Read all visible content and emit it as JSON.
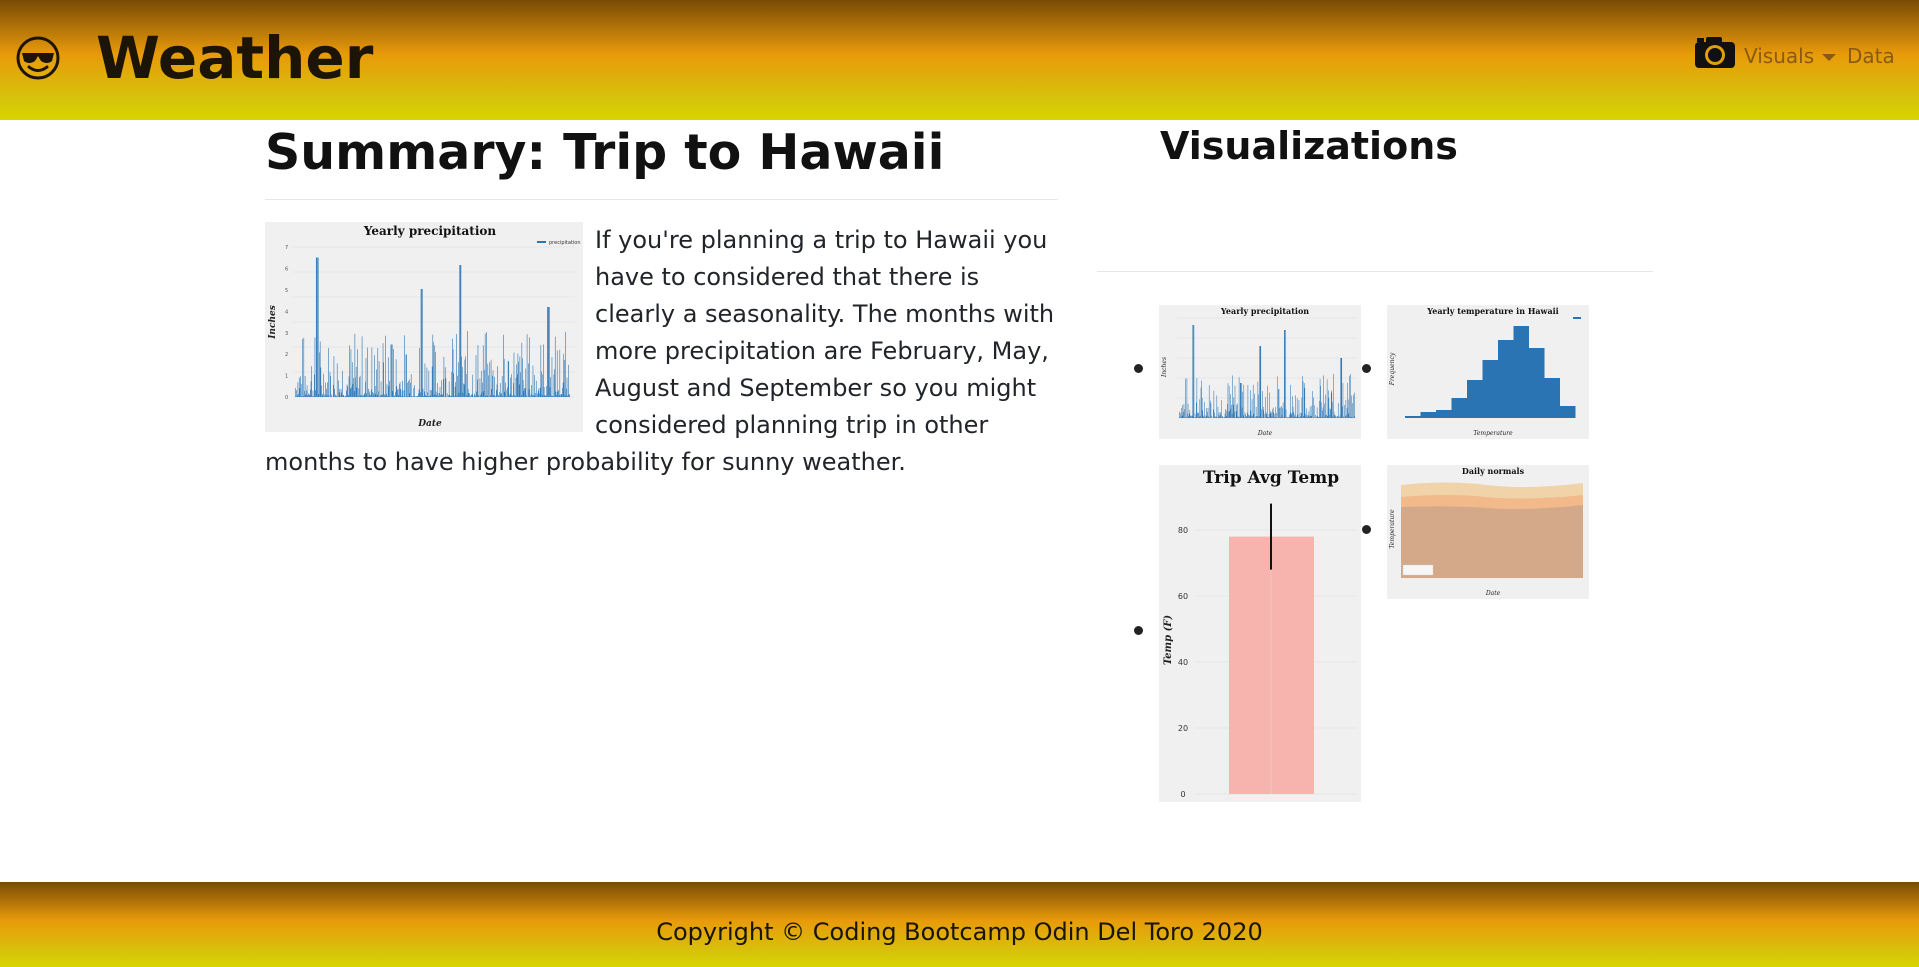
{
  "header": {
    "logo_icon": "smiling-face-with-sunglasses-icon",
    "brand": "Weather",
    "nav": {
      "camera_icon": "camera-icon",
      "visuals_label": "Visuals",
      "data_label": "Data"
    },
    "gradient_colors": [
      "#7a4a05",
      "#e89a0a",
      "#d6c60a"
    ]
  },
  "summary": {
    "title": "Summary: Trip to Hawaii",
    "text": "If you're planning a trip to Hawaii you have to considered that there is clearly a seasonality. The months with more precipitation are February, May, August and September so you might considered planning trip in other months to have higher probability for sunny weather.",
    "image": {
      "title": "Yearly precipitation",
      "xlabel": "Date",
      "ylabel": "Inches",
      "legend": "precipitation",
      "yticks": [
        "0",
        "1",
        "2",
        "3",
        "4",
        "5",
        "6",
        "7"
      ]
    }
  },
  "visualizations": {
    "title": "Visualizations",
    "items": [
      {
        "title": "Yearly precipitation",
        "xlabel": "Date",
        "ylabel": "Inches"
      },
      {
        "title": "Yearly temperature in Hawaii",
        "xlabel": "Temperature",
        "ylabel": "Frequency"
      },
      {
        "title": "Trip Avg Temp",
        "ylabel": "Temp (F)",
        "yticks": [
          "0",
          "20",
          "40",
          "60",
          "80"
        ],
        "value": 78,
        "error": 10,
        "bar_color": "#f7b4ae"
      },
      {
        "title": "Daily normals",
        "xlabel": "Date",
        "ylabel": "Temperature"
      }
    ]
  },
  "footer": {
    "copyright": "Copyright © Coding Bootcamp Odin Del Toro 2020"
  }
}
